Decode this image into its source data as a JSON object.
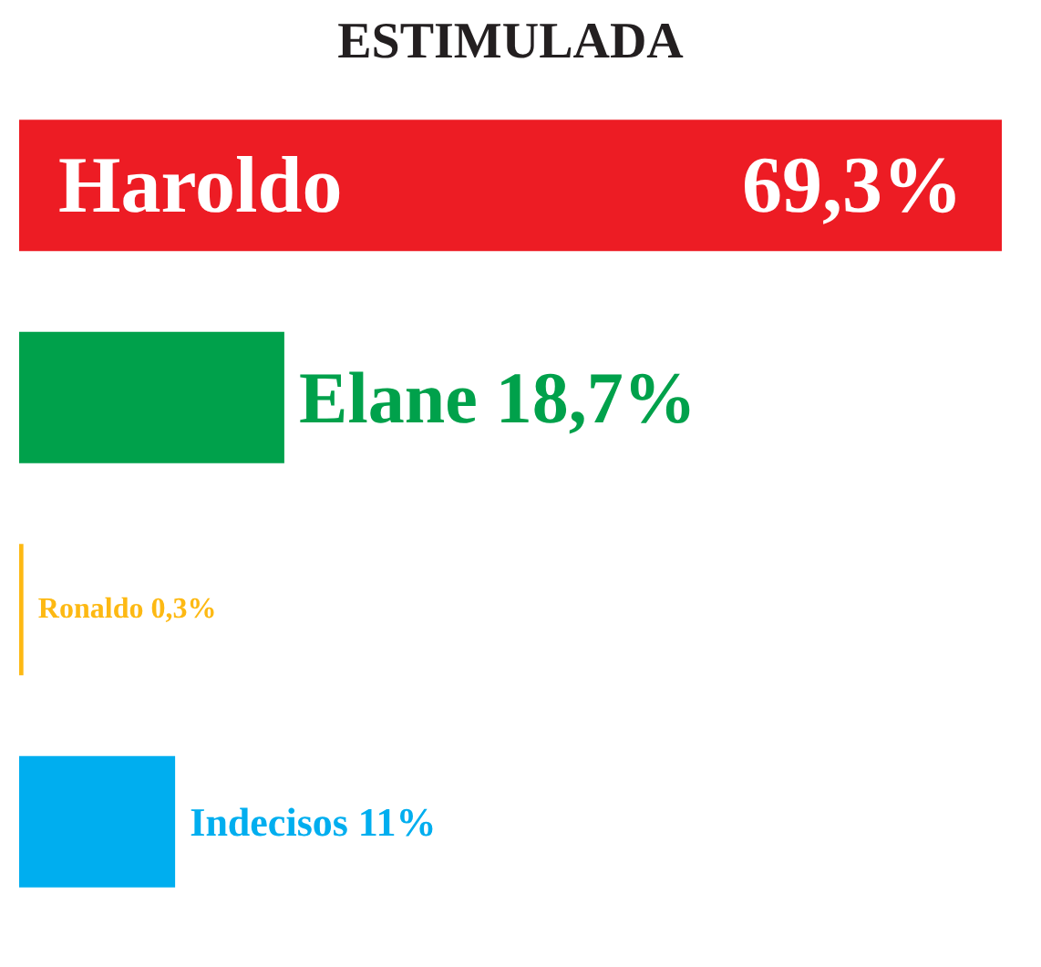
{
  "chart_data": {
    "type": "bar",
    "orientation": "horizontal",
    "title": "ESTIMULADA",
    "categories": [
      "Haroldo",
      "Elane",
      "Ronaldo",
      "Indecisos"
    ],
    "values": [
      69.3,
      18.7,
      0.3,
      11
    ],
    "colors": [
      "#ed1c24",
      "#00a14b",
      "#fdb913",
      "#00aeef"
    ],
    "value_labels": [
      "69,3%",
      "18,7%",
      "0,3%",
      "11%"
    ]
  }
}
